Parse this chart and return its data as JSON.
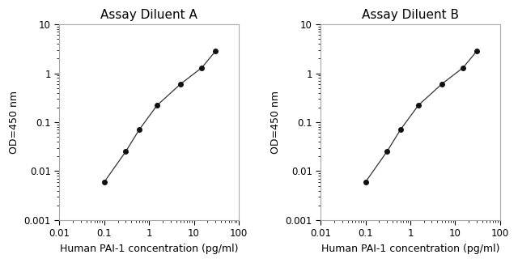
{
  "panel_A": {
    "title": "Assay Diluent A",
    "x": [
      0.1,
      0.3,
      0.6,
      1.5,
      5,
      15,
      30
    ],
    "y": [
      0.006,
      0.025,
      0.07,
      0.22,
      0.6,
      1.3,
      2.8
    ]
  },
  "panel_B": {
    "title": "Assay Diluent B",
    "x": [
      0.1,
      0.3,
      0.6,
      1.5,
      5,
      15,
      30
    ],
    "y": [
      0.006,
      0.025,
      0.07,
      0.22,
      0.6,
      1.3,
      2.8
    ]
  },
  "xlabel": "Human PAI-1 concentration (pg/ml)",
  "ylabel": "OD=450 nm",
  "xlim": [
    0.01,
    100
  ],
  "ylim": [
    0.001,
    10
  ],
  "x_major_ticks": [
    0.01,
    0.1,
    1,
    10,
    100
  ],
  "x_major_labels": [
    "0.01",
    "0.1",
    "1",
    "10",
    "100"
  ],
  "y_major_ticks": [
    0.001,
    0.01,
    0.1,
    1,
    10
  ],
  "y_major_labels": [
    "0.001",
    "0.01",
    "0.1",
    "1",
    "10"
  ],
  "line_color": "#333333",
  "marker_color": "#111111",
  "marker_size": 4,
  "bg_color": "#ffffff",
  "spine_color": "#aaaaaa",
  "title_fontsize": 11,
  "label_fontsize": 9,
  "tick_fontsize": 8.5
}
